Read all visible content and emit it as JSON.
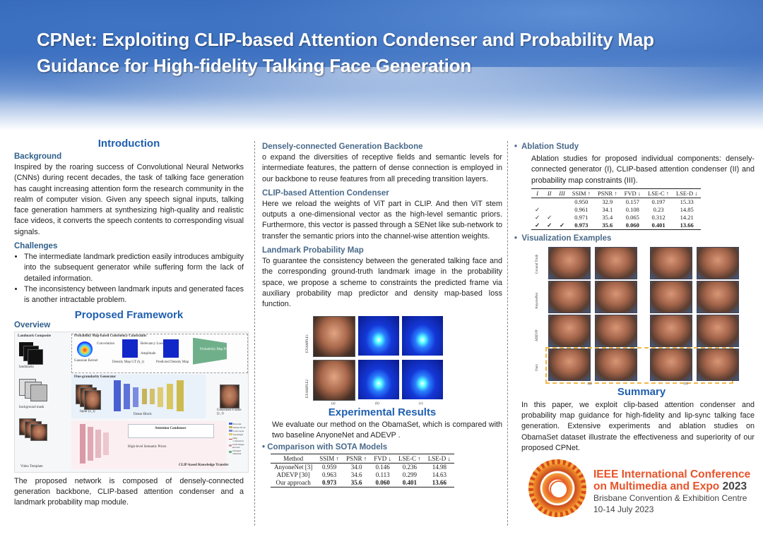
{
  "title": "CPNet: Exploiting CLIP-based Attention Condenser and Probability Map Guidance for High-fidelity Talking Face Generation",
  "intro": {
    "heading": "Introduction",
    "background_title": "Background",
    "background_text": "Inspired by the roaring success of Convolutional Neural Networks (CNNs) during recent decades, the task of talking face generation has caught increasing attention form the research community in the realm of computer vision. Given any speech signal inputs, talking face generation hammers at synthesizing high-quality and realistic face videos, it converts the speech contents to corresponding visual signals.",
    "challenges_title": "Challenges",
    "challenges": [
      "The intermediate landmark prediction easily introduces ambiguity into the subsequent generator while suffering form the lack of detailed information.",
      "The inconsistency between landmark inputs and generated faces is another intractable problem."
    ]
  },
  "framework": {
    "heading": "Proposed Framework",
    "overview_title": "Overview",
    "overview_text": "The proposed network is composed of densely-connected generation backbone, CLIP-based attention condenser and a landmark probability map module.",
    "diagram_labels": {
      "landmark_composite": "Landmark Composite",
      "prob_guided": "Probability Map-based Consistency Constraints",
      "convolution": "Convolution",
      "relevancy_loss": "Relevancy Loss",
      "gaussian_kernel": "Gaussian Kernel",
      "density_map_gt": "Density Map GT (h_t)",
      "predicted_density": "Predicted Density Map",
      "hash": "Amplitude",
      "prob_map_predictor": "Probability Map Predictor",
      "generator": "Fine-granularity Generator",
      "landmarks": "landmarks",
      "background_mask": "background mask",
      "video_template": "Video Template",
      "input": "Input (x_t)",
      "dense_conn": "Dense Block",
      "generated": "Generated Frame (y_t)",
      "attention_condenser": "Attention Condenser",
      "semantic_priors": "High-level Semantic Priors",
      "clip_transfer": "CLIP-based Knowledge Transfer",
      "legend": [
        "Encoder",
        "Dense block",
        "Conv layer",
        "Upsample",
        "Skip connection",
        "CLIP image encoder",
        "Channel attention"
      ]
    }
  },
  "middle": {
    "dense_title": "Densely-connected Generation Backbone",
    "dense_text": "o expand the diversities of receptive fields and semantic levels for intermediate features, the pattern of dense connection is employed in our backbone to reuse features from all preceding transition layers.",
    "clip_title": "CLIP-based Attention Condenser",
    "clip_text": "Here we reload the weights of ViT part in CLIP. And then ViT stem outputs a one-dimensional vector as the high-level semantic priors. Furthermore, this vector is passed through a SENet like sub-network to transfer the semantic priors into the channel-wise attention weights.",
    "landmark_title": "Landmark Probability Map",
    "landmark_text": "To guarantee the consistency between the generated talking face and the corresponding ground-truth landmark image in the probability space, we propose a scheme to constraints the predicted frame via auxiliary probability map predictor and density map-based loss function.",
    "figure_row_labels": [
      "EXAMPLE1",
      "EXAMPLE2"
    ],
    "figure_col_labels": [
      "(a)",
      "(b)",
      "(c)"
    ],
    "results_heading": "Experimental Results",
    "results_text": "We evaluate our method on the ObamaSet, which is compared with two baseline AnyoneNet and ADEVP .",
    "sota_title": "Comparison with SOTA Models",
    "sota_table": {
      "headers": [
        "Method",
        "SSIM ↑",
        "PSNR ↑",
        "FVD ↓",
        "LSE-C ↑",
        "LSE-D ↓"
      ],
      "rows": [
        [
          "AnyoneNet [3]",
          "0.959",
          "34.0",
          "0.146",
          "0.236",
          "14.98"
        ],
        [
          "ADEVP [30]",
          "0.963",
          "34.6",
          "0.113",
          "0.299",
          "14.63"
        ],
        [
          "Our approach",
          "0.973",
          "35.6",
          "0.060",
          "0.401",
          "13.66"
        ]
      ]
    }
  },
  "right": {
    "ablation_title": "Ablation Study",
    "ablation_text": "Ablation studies for proposed individual components: densely-connected generator (I), CLIP-based attention condenser (II) and probability map constraints (III).",
    "ablation_table": {
      "headers": [
        "I",
        "II",
        "III",
        "SSIM ↑",
        "PSNR ↑",
        "FVD ↓",
        "LSE-C ↑",
        "LSE-D ↓"
      ],
      "rows": [
        [
          "",
          "",
          "",
          "0.950",
          "32.9",
          "0.157",
          "0.197",
          "15.33"
        ],
        [
          "✓",
          "",
          "",
          "0.961",
          "34.1",
          "0.108",
          "0.23",
          "14.85"
        ],
        [
          "✓",
          "✓",
          "",
          "0.971",
          "35.4",
          "0.065",
          "0.312",
          "14.21"
        ],
        [
          "✓",
          "✓",
          "✓",
          "0.973",
          "35.6",
          "0.060",
          "0.401",
          "13.66"
        ]
      ]
    },
    "visualization_title": "Visualization Examples",
    "vis_row_labels": [
      "Ground Truth",
      "AnyoneNet",
      "ADEVP",
      "Ours"
    ],
    "vis_col_labels": [
      "(a)",
      "(b)"
    ],
    "summary_heading": "Summary",
    "summary_text": "In this paper, we exploit clip-based attention condenser and probability map guidance for high-fidelity and lip-sync talking face generation. Extensive experiments and ablation studies on ObamaSet dataset illustrate the effectiveness and superiority of our proposed CPNet."
  },
  "conference": {
    "line1": "IEEE International Conference",
    "line2a": "on Multimedia and Expo ",
    "line2b": "2023",
    "venue": "Brisbane Convention & Exhibition Centre",
    "dates": "10-14 July 2023"
  }
}
